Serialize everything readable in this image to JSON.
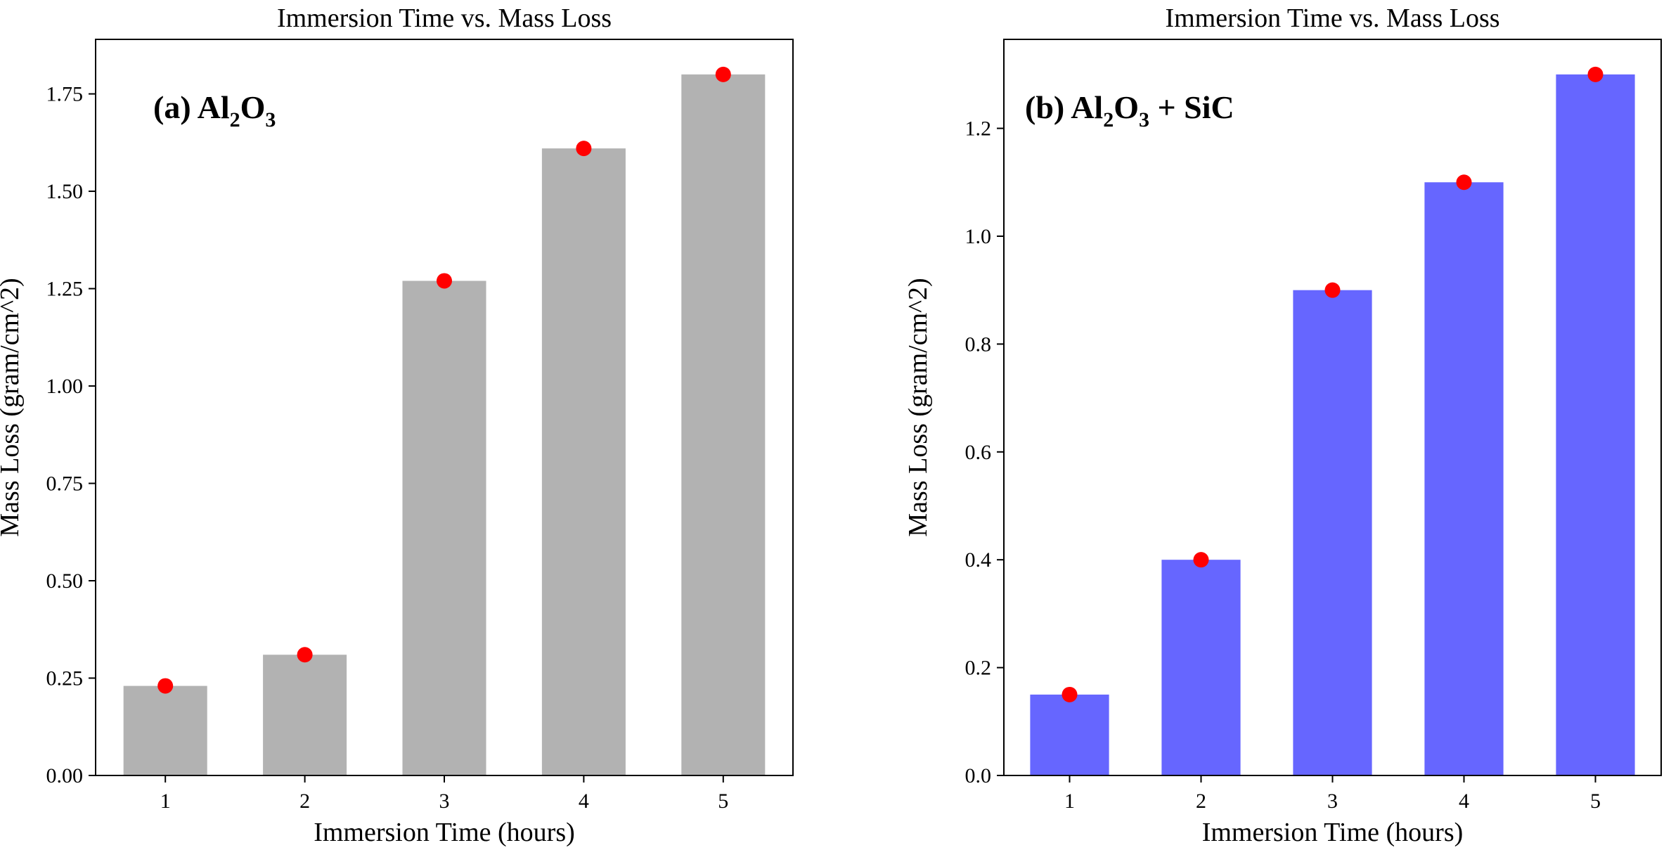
{
  "chart_data": [
    {
      "type": "bar",
      "title": "Immersion Time vs. Mass Loss",
      "annotation": {
        "prefix": "(a) ",
        "parts": [
          [
            "Al",
            false
          ],
          [
            "2",
            true
          ],
          [
            "O",
            false
          ],
          [
            "3",
            true
          ]
        ]
      },
      "xlabel": "Immersion Time (hours)",
      "ylabel": "Mass Loss (gram/cm^2)",
      "categories": [
        "1",
        "2",
        "3",
        "4",
        "5"
      ],
      "values": [
        0.23,
        0.31,
        1.27,
        1.61,
        1.8
      ],
      "markers": [
        0.23,
        0.31,
        1.27,
        1.61,
        1.8
      ],
      "ylim": [
        0,
        1.89
      ],
      "yticks": [
        0.0,
        0.25,
        0.5,
        0.75,
        1.0,
        1.25,
        1.5,
        1.75
      ],
      "ytick_labels": [
        "0.00",
        "0.25",
        "0.50",
        "0.75",
        "1.00",
        "1.25",
        "1.50",
        "1.75"
      ],
      "bar_color": "#b2b2b2",
      "marker_color": "#ff0000",
      "grid": false
    },
    {
      "type": "bar",
      "title": "Immersion Time vs. Mass Loss",
      "annotation": {
        "prefix": "(b)  ",
        "parts": [
          [
            "Al",
            false
          ],
          [
            "2",
            true
          ],
          [
            "O",
            false
          ],
          [
            "3",
            true
          ],
          [
            " + SiC",
            false
          ]
        ]
      },
      "xlabel": "Immersion Time (hours)",
      "ylabel": "Mass Loss (gram/cm^2)",
      "categories": [
        "1",
        "2",
        "3",
        "4",
        "5"
      ],
      "values": [
        0.15,
        0.4,
        0.9,
        1.1,
        1.3
      ],
      "markers": [
        0.15,
        0.4,
        0.9,
        1.1,
        1.3
      ],
      "ylim": [
        0,
        1.365
      ],
      "yticks": [
        0.0,
        0.2,
        0.4,
        0.6,
        0.8,
        1.0,
        1.2
      ],
      "ytick_labels": [
        "0.0",
        "0.2",
        "0.4",
        "0.6",
        "0.8",
        "1.0",
        "1.2"
      ],
      "bar_color": "#6666ff",
      "marker_color": "#ff0000",
      "grid": false
    }
  ]
}
